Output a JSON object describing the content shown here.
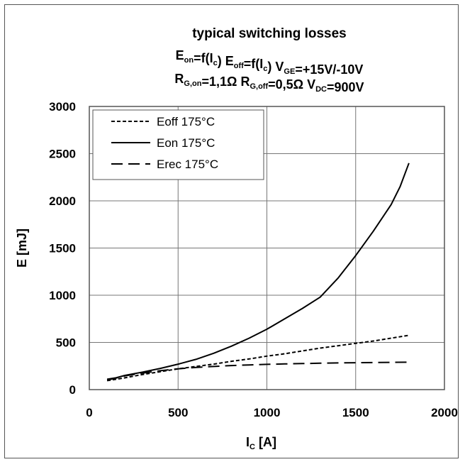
{
  "chart_data": {
    "type": "line",
    "title": "typical switching losses",
    "subtitle_lines": [
      {
        "parts": [
          {
            "t": "E"
          },
          {
            "t": "on",
            "sub": true
          },
          {
            "t": "=f(I"
          },
          {
            "t": "c",
            "sub": true
          },
          {
            "t": ") E"
          },
          {
            "t": "off",
            "sub": true
          },
          {
            "t": "=f(I"
          },
          {
            "t": "c",
            "sub": true
          },
          {
            "t": ") V"
          },
          {
            "t": "GE",
            "sub": true
          },
          {
            "t": "=+15V/-10V"
          }
        ]
      },
      {
        "parts": [
          {
            "t": "R"
          },
          {
            "t": "G,on",
            "sub": true
          },
          {
            "t": "=1,1Ω R"
          },
          {
            "t": "G,off",
            "sub": true
          },
          {
            "t": "=0,5Ω V"
          },
          {
            "t": "DC",
            "sub": true
          },
          {
            "t": "=900V"
          }
        ]
      }
    ],
    "xlabel": {
      "main": "I",
      "sub": "C",
      "tail": " [A]"
    },
    "ylabel": "E [mJ]",
    "xlim": [
      0,
      2000
    ],
    "ylim": [
      0,
      3000
    ],
    "xticks": [
      0,
      500,
      1000,
      1500,
      2000
    ],
    "yticks": [
      0,
      500,
      1000,
      1500,
      2000,
      2500,
      3000
    ],
    "grid": true,
    "legend_position": "top-left",
    "series": [
      {
        "name": "Eoff 175°C",
        "style": "short-dash",
        "x": [
          100,
          200,
          300,
          400,
          500,
          600,
          700,
          800,
          900,
          1000,
          1100,
          1200,
          1300,
          1400,
          1500,
          1600,
          1700,
          1800
        ],
        "y": [
          95,
          125,
          160,
          190,
          220,
          245,
          270,
          300,
          325,
          355,
          380,
          410,
          440,
          465,
          490,
          515,
          545,
          575
        ]
      },
      {
        "name": "Eon 175°C",
        "style": "solid",
        "x": [
          100,
          150,
          200,
          300,
          400,
          500,
          600,
          700,
          800,
          900,
          1000,
          1100,
          1200,
          1300,
          1400,
          1500,
          1600,
          1700,
          1750,
          1800
        ],
        "y": [
          110,
          125,
          150,
          185,
          225,
          270,
          320,
          385,
          460,
          545,
          640,
          750,
          860,
          980,
          1180,
          1420,
          1680,
          1960,
          2150,
          2400
        ]
      },
      {
        "name": "Erec 175°C",
        "style": "long-dash",
        "x": [
          100,
          200,
          300,
          400,
          500,
          600,
          700,
          800,
          900,
          1000,
          1100,
          1200,
          1300,
          1400,
          1500,
          1600,
          1700,
          1800
        ],
        "y": [
          100,
          145,
          175,
          200,
          220,
          235,
          245,
          255,
          262,
          268,
          272,
          276,
          280,
          283,
          285,
          287,
          289,
          290
        ]
      }
    ]
  },
  "colors": {
    "line": "#000000",
    "grid": "#777777",
    "frame": "#555555"
  }
}
